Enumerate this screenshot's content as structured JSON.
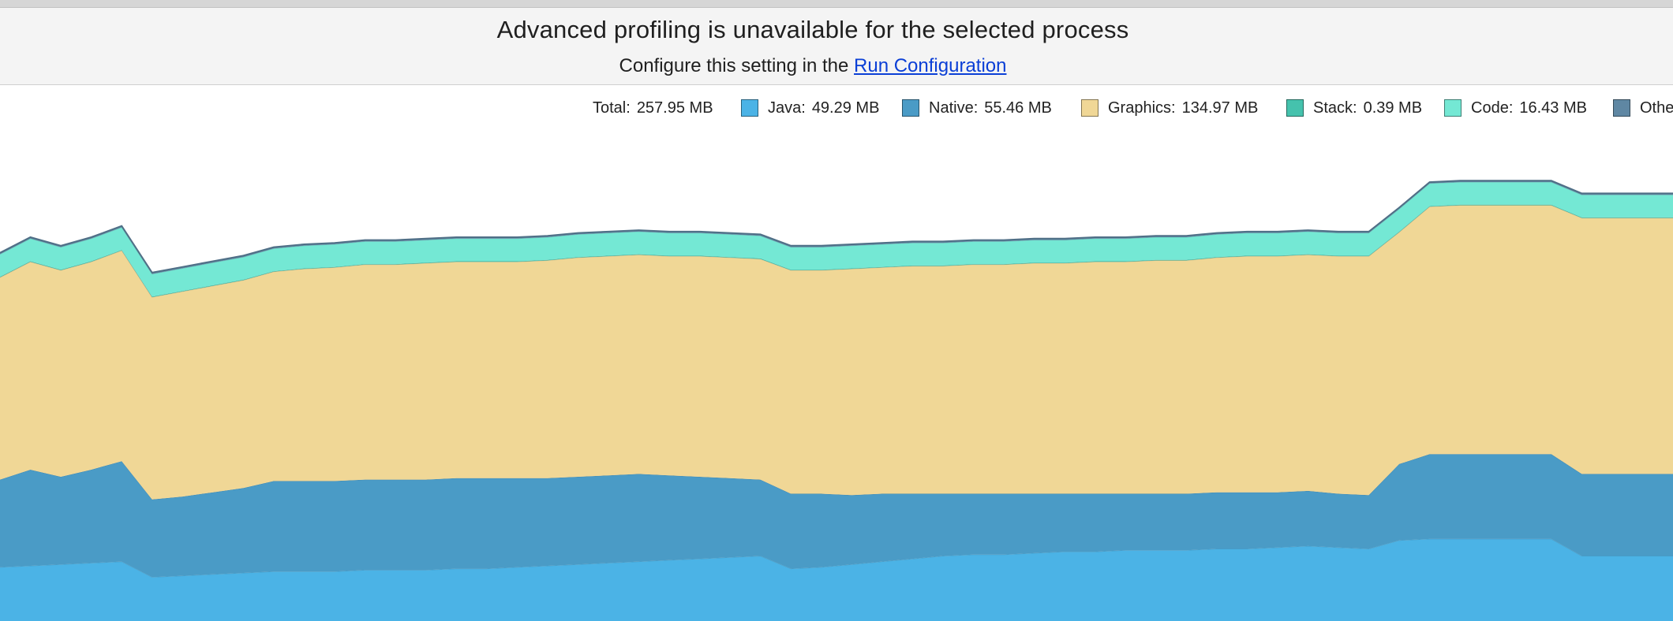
{
  "banner": {
    "title": "Advanced profiling is unavailable for the selected process",
    "subtitle_prefix": "Configure this setting in the",
    "link_label": "Run Configuration"
  },
  "legend": {
    "total_label": "Total:",
    "total_value": "257.95 MB",
    "items": [
      {
        "label": "Java:",
        "value": "49.29 MB",
        "color": "#4bb3e6"
      },
      {
        "label": "Native:",
        "value": "55.46 MB",
        "color": "#4a9bc6"
      },
      {
        "label": "Graphics:",
        "value": "134.97 MB",
        "color": "#f0d796"
      },
      {
        "label": "Stack:",
        "value": "0.39 MB",
        "color": "#45c2ad"
      },
      {
        "label": "Code:",
        "value": "16.43 MB",
        "color": "#74e8d4"
      },
      {
        "label": "Othe",
        "value": "",
        "color": "#5f87a3"
      }
    ]
  },
  "chart_data": {
    "type": "area",
    "stacked": true,
    "grid": false,
    "series_order": [
      "Java",
      "Native",
      "Graphics",
      "Stack",
      "Code",
      "Others"
    ],
    "x": [
      0,
      1,
      2,
      3,
      4,
      5,
      6,
      7,
      8,
      9,
      10,
      11,
      12,
      13,
      14,
      15,
      16,
      17,
      18,
      19,
      20,
      21,
      22,
      23,
      24,
      25,
      26,
      27,
      28,
      29,
      30,
      31,
      32,
      33,
      34,
      35,
      36,
      37,
      38,
      39,
      40,
      41,
      42,
      43,
      44,
      45,
      46,
      47,
      48,
      49,
      50,
      51,
      52,
      53,
      54,
      55
    ],
    "series": [
      {
        "name": "Java",
        "color": "#4bb3e6",
        "values": [
          38,
          39,
          40,
          41,
          42,
          31,
          32,
          33,
          34,
          35,
          35,
          35,
          36,
          36,
          36,
          37,
          37,
          38,
          39,
          40,
          41,
          42,
          43,
          44,
          45,
          46,
          37,
          38,
          40,
          42,
          44,
          46,
          47,
          47,
          48,
          49,
          49,
          50,
          50,
          50,
          51,
          51,
          52,
          53,
          52,
          51,
          57,
          58,
          58,
          58,
          58,
          58,
          46,
          46,
          46,
          46
        ]
      },
      {
        "name": "Native",
        "color": "#4a9bc6",
        "values": [
          62,
          68,
          62,
          66,
          71,
          55,
          56,
          58,
          60,
          64,
          64,
          64,
          64,
          64,
          64,
          64,
          64,
          63,
          62,
          62,
          62,
          62,
          60,
          58,
          56,
          54,
          53,
          52,
          49,
          48,
          46,
          44,
          43,
          43,
          42,
          41,
          41,
          40,
          40,
          40,
          40,
          40,
          39,
          39,
          38,
          38,
          54,
          60,
          60,
          60,
          60,
          60,
          58,
          58,
          58,
          58
        ]
      },
      {
        "name": "Graphics",
        "color": "#f0d796",
        "values": [
          143,
          147,
          146,
          147,
          149,
          143,
          145,
          146,
          147,
          148,
          150,
          151,
          152,
          152,
          153,
          153,
          153,
          153,
          154,
          155,
          155,
          155,
          155,
          156,
          156,
          156,
          158,
          158,
          160,
          160,
          161,
          161,
          162,
          162,
          163,
          163,
          164,
          164,
          165,
          165,
          166,
          167,
          167,
          167,
          168,
          169,
          164,
          175,
          176,
          176,
          176,
          176,
          181,
          181,
          181,
          181
        ]
      },
      {
        "name": "Stack",
        "color": "#45c2ad",
        "values": [
          0.4,
          0.4,
          0.4,
          0.4,
          0.4,
          0.4,
          0.4,
          0.4,
          0.4,
          0.4,
          0.4,
          0.4,
          0.4,
          0.4,
          0.4,
          0.4,
          0.4,
          0.4,
          0.4,
          0.4,
          0.4,
          0.4,
          0.4,
          0.4,
          0.4,
          0.4,
          0.4,
          0.4,
          0.4,
          0.4,
          0.4,
          0.4,
          0.4,
          0.4,
          0.4,
          0.4,
          0.4,
          0.4,
          0.4,
          0.4,
          0.4,
          0.4,
          0.4,
          0.4,
          0.4,
          0.4,
          0.4,
          0.4,
          0.4,
          0.4,
          0.4,
          0.4,
          0.4,
          0.4,
          0.4,
          0.4
        ]
      },
      {
        "name": "Code",
        "color": "#74e8d4",
        "values": [
          16,
          16,
          16,
          16,
          16,
          16,
          16,
          16,
          16,
          16,
          16,
          16,
          16,
          16,
          16,
          16,
          16,
          16,
          16,
          16,
          16,
          16,
          16,
          16,
          16,
          16,
          16,
          16,
          16,
          16,
          16,
          16,
          16,
          16,
          16,
          16,
          16,
          16,
          16,
          16,
          16,
          16,
          16,
          16,
          16,
          16,
          16,
          16,
          16,
          16,
          16,
          16,
          16,
          16,
          16,
          16
        ]
      },
      {
        "name": "Others",
        "color": "#5f87a3",
        "values": [
          1,
          1,
          1,
          1,
          1,
          1,
          1,
          1,
          1,
          1,
          1,
          1,
          1,
          1,
          1,
          1,
          1,
          1,
          1,
          1,
          1,
          1,
          1,
          1,
          1,
          1,
          1,
          1,
          1,
          1,
          1,
          1,
          1,
          1,
          1,
          1,
          1,
          1,
          1,
          1,
          1,
          1,
          1,
          1,
          1,
          1,
          1,
          1,
          1,
          1,
          1,
          1,
          1,
          1,
          1,
          1
        ]
      }
    ],
    "ylim": [
      0,
      350
    ]
  }
}
